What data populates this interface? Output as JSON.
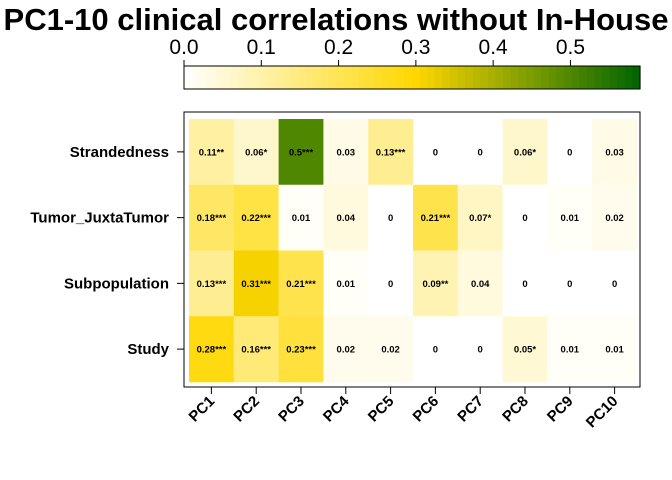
{
  "chart_data": {
    "type": "heatmap",
    "title": "PC1-10 clinical correlations without In-House",
    "columns": [
      "PC1",
      "PC2",
      "PC3",
      "PC4",
      "PC5",
      "PC6",
      "PC7",
      "PC8",
      "PC9",
      "PC10"
    ],
    "rows": [
      "Strandedness",
      "Tumor_JuxtaTumor",
      "Subpopulation",
      "Study"
    ],
    "values": [
      [
        0.11,
        0.06,
        0.5,
        0.03,
        0.13,
        0,
        0,
        0.06,
        0,
        0.03
      ],
      [
        0.18,
        0.22,
        0.01,
        0.04,
        0,
        0.21,
        0.07,
        0,
        0.01,
        0.02
      ],
      [
        0.13,
        0.31,
        0.21,
        0.01,
        0,
        0.09,
        0.04,
        0,
        0,
        0
      ],
      [
        0.28,
        0.16,
        0.23,
        0.02,
        0.02,
        0,
        0,
        0.05,
        0.01,
        0.01
      ]
    ],
    "cell_labels": [
      [
        "0.11**",
        "0.06*",
        "0.5***",
        "0.03",
        "0.13***",
        "0",
        "0",
        "0.06*",
        "0",
        "0.03"
      ],
      [
        "0.18***",
        "0.22***",
        "0.01",
        "0.04",
        "0",
        "0.21***",
        "0.07*",
        "0",
        "0.01",
        "0.02"
      ],
      [
        "0.13***",
        "0.31***",
        "0.21***",
        "0.01",
        "0",
        "0.09**",
        "0.04",
        "0",
        "0",
        "0"
      ],
      [
        "0.28***",
        "0.16***",
        "0.23***",
        "0.02",
        "0.02",
        "0",
        "0",
        "0.05*",
        "0.01",
        "0.01"
      ]
    ],
    "colorbar": {
      "range": [
        0,
        0.59
      ],
      "ticks": [
        0.0,
        0.1,
        0.2,
        0.3,
        0.4,
        0.5
      ],
      "tick_labels": [
        "0.0",
        "0.1",
        "0.2",
        "0.3",
        "0.4",
        "0.5"
      ],
      "stops": [
        {
          "value": 0.0,
          "color": "#ffffff"
        },
        {
          "value": 0.3,
          "color": "#ffd700"
        },
        {
          "value": 0.59,
          "color": "#006400"
        }
      ],
      "placement": "top"
    },
    "colors": {
      "frame": "#000000",
      "low": "#ffffff",
      "mid": "#ffd700",
      "high": "#006400"
    }
  }
}
